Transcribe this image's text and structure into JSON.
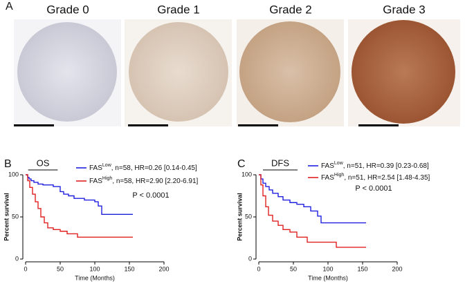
{
  "panel_a": {
    "label": "A",
    "grades": [
      "Grade 0",
      "Grade 1",
      "Grade 2",
      "Grade 3"
    ]
  },
  "chart_data": [
    {
      "type": "line",
      "panel_label": "B",
      "title": "OS",
      "annotation": "P < 0.0001",
      "x_label": "Time (Months)",
      "y_label": "Percent survival",
      "xlim": [
        0,
        200
      ],
      "xticks": [
        0,
        50,
        100,
        150,
        200
      ],
      "ylim": [
        0,
        100
      ],
      "yticks": [
        0,
        50,
        100
      ],
      "series": [
        {
          "name": "FAS",
          "name_sup": "Low",
          "name_rest": ", n=58, HR=0.26 [0.14-0.45]",
          "color": "#1f1fe0",
          "x": [
            0,
            3,
            5,
            8,
            12,
            18,
            25,
            40,
            50,
            55,
            62,
            70,
            85,
            100,
            105,
            110,
            155
          ],
          "values": [
            100,
            97,
            95,
            93,
            91,
            89,
            88,
            86,
            80,
            77,
            75,
            72,
            70,
            68,
            63,
            53,
            53
          ]
        },
        {
          "name": "FAS",
          "name_sup": "High",
          "name_rest": ", n=58, HR=2.90 [2.20-6.91]",
          "color": "#e01f1f",
          "x": [
            0,
            3,
            6,
            10,
            14,
            18,
            22,
            27,
            32,
            40,
            50,
            60,
            75,
            155
          ],
          "values": [
            100,
            93,
            85,
            77,
            68,
            60,
            50,
            43,
            37,
            35,
            33,
            30,
            26,
            26
          ]
        }
      ]
    },
    {
      "type": "line",
      "panel_label": "C",
      "title": "DFS",
      "annotation": "P < 0.0001",
      "x_label": "Time (Months)",
      "y_label": "Percent survival",
      "xlim": [
        0,
        200
      ],
      "xticks": [
        0,
        50,
        100,
        150,
        200
      ],
      "ylim": [
        0,
        100
      ],
      "yticks": [
        0,
        50,
        100
      ],
      "series": [
        {
          "name": "FAS",
          "name_sup": "Low",
          "name_rest": ", n=51, HR=0.39 [0.23-0.68]",
          "color": "#1f1fe0",
          "x": [
            0,
            3,
            6,
            10,
            15,
            20,
            28,
            35,
            45,
            55,
            65,
            75,
            85,
            90,
            155
          ],
          "values": [
            100,
            95,
            90,
            86,
            82,
            78,
            74,
            70,
            67,
            65,
            62,
            57,
            51,
            43,
            43
          ]
        },
        {
          "name": "FAS",
          "name_sup": "High",
          "name_rest": ", n=51, HR=2.54 [1.48-4.35]",
          "color": "#e01f1f",
          "x": [
            0,
            3,
            6,
            10,
            14,
            20,
            28,
            35,
            45,
            55,
            70,
            110,
            112,
            155
          ],
          "values": [
            100,
            88,
            75,
            62,
            52,
            45,
            40,
            35,
            32,
            26,
            20,
            20,
            14,
            14
          ]
        }
      ]
    }
  ]
}
